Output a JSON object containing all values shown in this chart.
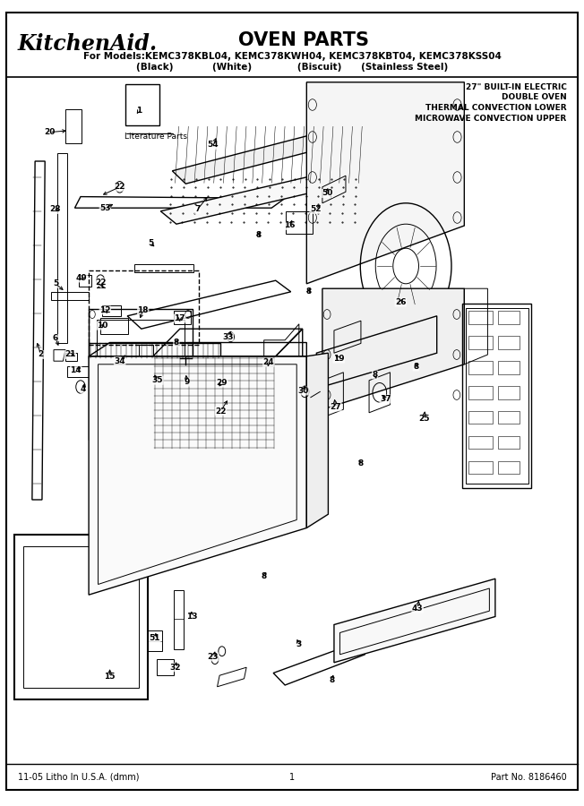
{
  "title": "OVEN PARTS",
  "brand": "KitchenAid.",
  "subtitle_line1": "For Models:KEMC378KBL04, KEMC378KWH04, KEMC378KBT04, KEMC378KSS04",
  "subtitle_line2": "(Black)            (White)              (Biscuit)      (Stainless Steel)",
  "spec_line1": "27\" BUILT-IN ELECTRIC",
  "spec_line2": "DOUBLE OVEN",
  "spec_line3": "THERMAL CONVECTION LOWER",
  "spec_line4": "MICROWAVE CONVECTION UPPER",
  "footer_left": "11-05 Litho In U.S.A. (dmm)",
  "footer_center": "1",
  "footer_right": "Part No. 8186460",
  "background_color": "#ffffff",
  "fig_width": 6.52,
  "fig_height": 9.0,
  "dpi": 100
}
